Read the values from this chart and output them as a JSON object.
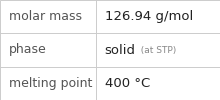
{
  "rows": [
    {
      "label": "molar mass",
      "value_parts": [
        {
          "text": "126.94 g/mol",
          "size": 9.5,
          "color": "#222222"
        }
      ]
    },
    {
      "label": "phase",
      "value_parts": [
        {
          "text": "solid",
          "size": 9.5,
          "color": "#222222"
        },
        {
          "text": "  (at STP)",
          "size": 6.5,
          "color": "#888888"
        }
      ]
    },
    {
      "label": "melting point",
      "value_parts": [
        {
          "text": "400 °C",
          "size": 9.5,
          "color": "#222222"
        }
      ]
    }
  ],
  "label_fontsize": 9,
  "label_color": "#555555",
  "background_color": "#ffffff",
  "border_color": "#cccccc",
  "col_split": 0.435,
  "fig_width": 2.2,
  "fig_height": 1.0,
  "dpi": 100
}
